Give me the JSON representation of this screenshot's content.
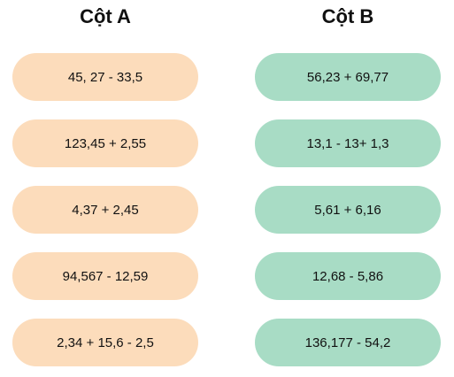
{
  "columns": [
    {
      "title": "Cột A",
      "items": [
        "45, 27 - 33,5",
        "123,45 + 2,55",
        "4,37 + 2,45",
        "94,567 - 12,59",
        "2,34 + 15,6 - 2,5"
      ]
    },
    {
      "title": "Cột B",
      "items": [
        "56,23 + 69,77",
        "13,1 - 13+ 1,3",
        "5,61 + 6,16",
        "12,68 - 5,86",
        "136,177 - 54,2"
      ]
    }
  ]
}
